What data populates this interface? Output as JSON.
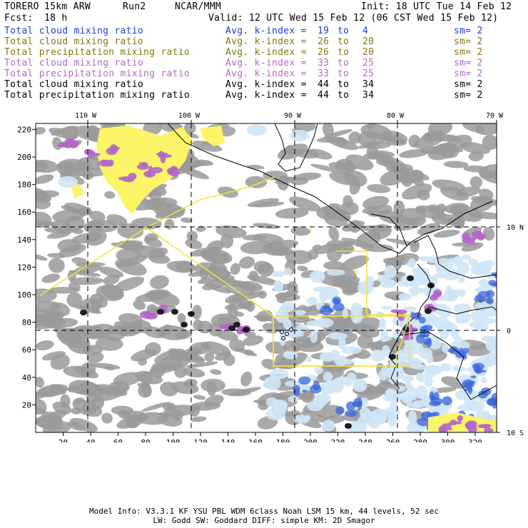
{
  "header": {
    "model": "TORERO",
    "resolution": "15km ARW",
    "run": "Run2",
    "org": "NCAR/MMM",
    "init": "Init: 18 UTC Tue 14 Feb 12",
    "fcst_label": "Fcst:",
    "fcst_value": "18 h",
    "valid": "Valid: 12 UTC Wed 15 Feb 12 (06 CST Wed 15 Feb 12)"
  },
  "legend": [
    {
      "field": "Total cloud mixing ratio",
      "avg": "Avg. k-index =",
      "k1": "19",
      "to": "to",
      "k2": "4",
      "sm": "sm= 2",
      "color": "#1a3fd6"
    },
    {
      "field": "Total cloud mixing ratio",
      "avg": "Avg. k-index =",
      "k1": "26",
      "to": "to",
      "k2": "20",
      "sm": "sm= 2",
      "color": "#7f7a10"
    },
    {
      "field": "Total precipitation mixing ratio",
      "avg": "Avg. k-index =",
      "k1": "26",
      "to": "to",
      "k2": "20",
      "sm": "sm= 2",
      "color": "#7f7a10"
    },
    {
      "field": "Total cloud mixing ratio",
      "avg": "Avg. k-index =",
      "k1": "33",
      "to": "to",
      "k2": "25",
      "sm": "sm= 2",
      "color": "#b368c9"
    },
    {
      "field": "Total precipitation mixing ratio",
      "avg": "Avg. k-index =",
      "k1": "33",
      "to": "to",
      "k2": "25",
      "sm": "sm= 2",
      "color": "#b368c9"
    },
    {
      "field": "Total cloud mixing ratio",
      "avg": "Avg. k-index =",
      "k1": "44",
      "to": "to",
      "k2": "34",
      "sm": "sm= 2",
      "color": "#000000"
    },
    {
      "field": "Total precipitation mixing ratio",
      "avg": "Avg. k-index =",
      "k1": "44",
      "to": "to",
      "k2": "34",
      "sm": "sm= 2",
      "color": "#000000"
    }
  ],
  "map": {
    "lon_labels": [
      "110 W",
      "100 W",
      "90 W",
      "80 W",
      "70 W"
    ],
    "lat_labels": [
      "10 N",
      "0",
      "10 S"
    ],
    "x_ticks": [
      "20",
      "40",
      "60",
      "80",
      "100",
      "120",
      "140",
      "160",
      "180",
      "200",
      "220",
      "240",
      "260",
      "280",
      "300",
      "320"
    ],
    "y_ticks": [
      "220",
      "200",
      "180",
      "160",
      "140",
      "120",
      "100",
      "80",
      "60",
      "40",
      "20"
    ],
    "inset_labels": [
      "C",
      "R"
    ],
    "colors": {
      "cloud_gray": "#9a9a9a",
      "light_blue": "#cfe6f6",
      "blue": "#3a66d9",
      "yellow": "#fbf567",
      "purple": "#b366c8",
      "black_core": "#1e1e1e",
      "domain_line": "#f2e23a",
      "coast": "#000000"
    }
  },
  "footer": {
    "line1": "Model Info: V3.3.1   KF     YSU PBL  WDM 6class  Noah LSM  15 km,   44 levels,   52 sec",
    "line2": "LW: Godd SW: Goddard DIFF: simple KM: 2D Smagor"
  }
}
